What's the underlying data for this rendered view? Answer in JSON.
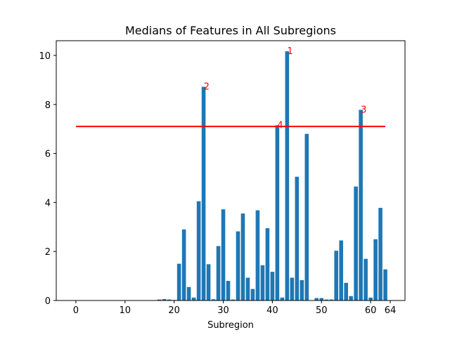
{
  "chart_data": {
    "type": "bar",
    "title": "Medians of Features in All Subregions",
    "xlabel": "Subregion",
    "ylabel": "",
    "xlim": [
      -4,
      67
    ],
    "ylim": [
      0,
      10.6
    ],
    "xticks": [
      0,
      10,
      20,
      30,
      40,
      50,
      60,
      64
    ],
    "yticks": [
      0,
      2,
      4,
      6,
      8,
      10
    ],
    "grid": false,
    "bar_color": "#1f77b4",
    "categories": [
      0,
      1,
      2,
      3,
      4,
      5,
      6,
      7,
      8,
      9,
      10,
      11,
      12,
      13,
      14,
      15,
      16,
      17,
      18,
      19,
      20,
      21,
      22,
      23,
      24,
      25,
      26,
      27,
      28,
      29,
      30,
      31,
      32,
      33,
      34,
      35,
      36,
      37,
      38,
      39,
      40,
      41,
      42,
      43,
      44,
      45,
      46,
      47,
      48,
      49,
      50,
      51,
      52,
      53,
      54,
      55,
      56,
      57,
      58,
      59,
      60,
      61,
      62,
      63
    ],
    "values": [
      0,
      0,
      0,
      0,
      0,
      0,
      0,
      0,
      0,
      0,
      0,
      0,
      0,
      0,
      0,
      0,
      0,
      0.04,
      0.06,
      0.04,
      0.02,
      1.5,
      2.9,
      0.55,
      0.12,
      4.05,
      8.72,
      1.48,
      0.05,
      2.22,
      3.72,
      0.8,
      0.04,
      2.82,
      3.55,
      0.93,
      0.47,
      3.68,
      1.44,
      2.95,
      1.17,
      7.15,
      0.12,
      10.17,
      0.93,
      5.05,
      0.83,
      6.8,
      0,
      0.1,
      0.1,
      0.04,
      0.04,
      2.03,
      2.45,
      0.72,
      0.18,
      4.65,
      7.78,
      1.7,
      0.12,
      2.5,
      3.78,
      1.27
    ],
    "threshold": {
      "value": 7.1,
      "x_start": 0,
      "x_end": 63,
      "color": "#ff0000"
    },
    "annotations": [
      {
        "label": "1",
        "x": 43,
        "y": 10.17
      },
      {
        "label": "2",
        "x": 26,
        "y": 8.72
      },
      {
        "label": "3",
        "x": 58,
        "y": 7.78
      },
      {
        "label": "4",
        "x": 41,
        "y": 7.15
      }
    ],
    "annotation_color": "#ff0000"
  }
}
